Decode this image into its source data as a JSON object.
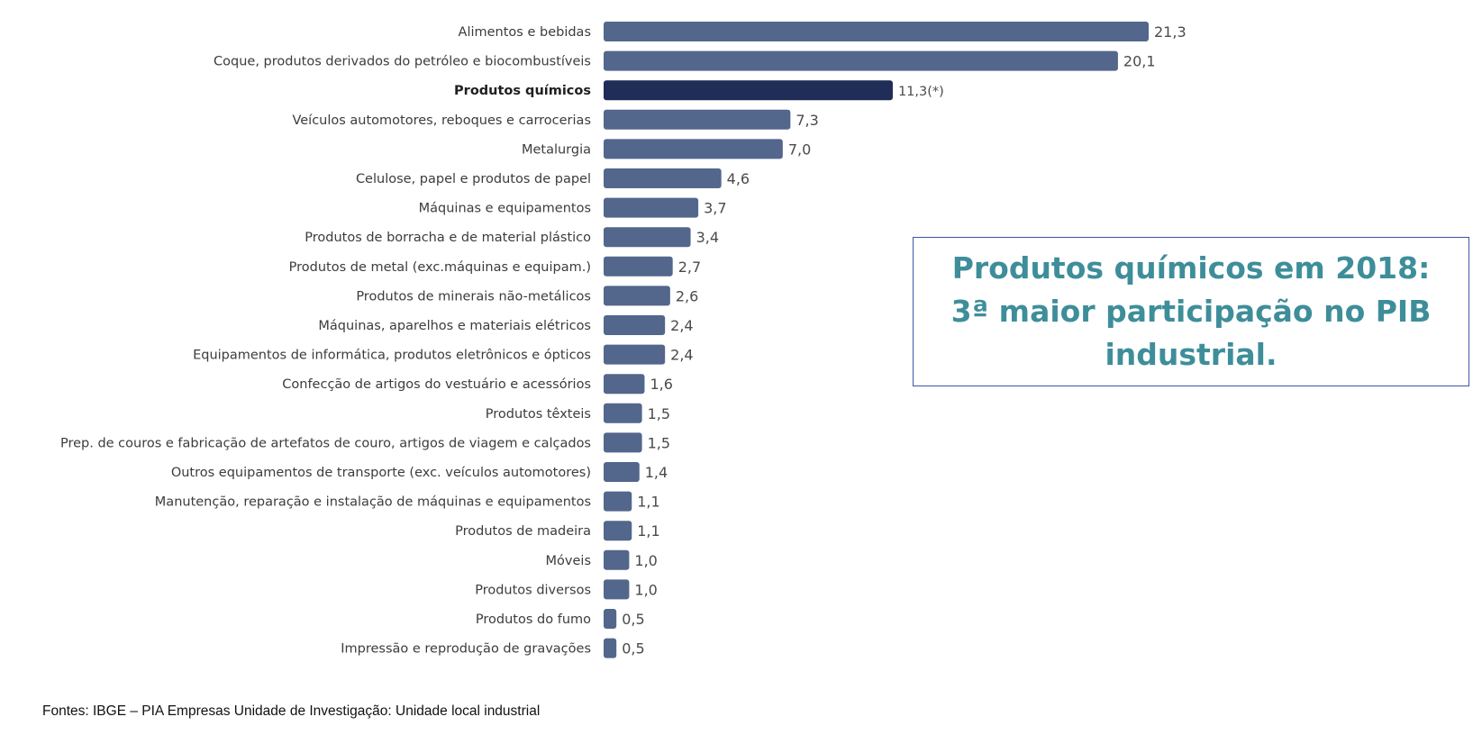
{
  "chart_data": {
    "type": "bar",
    "orientation": "horizontal",
    "categories": [
      "Alimentos e bebidas",
      "Coque, produtos derivados do petróleo e biocombustíveis",
      "Produtos químicos",
      "Veículos automotores, reboques e carrocerias",
      "Metalurgia",
      "Celulose, papel e produtos de papel",
      "Máquinas e equipamentos",
      "Produtos de borracha e de material plástico",
      "Produtos de metal (exc.máquinas e equipam.)",
      "Produtos de minerais não-metálicos",
      "Máquinas, aparelhos e materiais elétricos",
      "Equipamentos de informática, produtos eletrônicos e ópticos",
      "Confecção de artigos do vestuário e acessórios",
      "Produtos têxteis",
      "Prep. de couros e fabricação de artefatos de couro, artigos de viagem e calçados",
      "Outros equipamentos de transporte (exc. veículos automotores)",
      "Manutenção, reparação e instalação de máquinas e equipamentos",
      "Produtos de madeira",
      "Móveis",
      "Produtos diversos",
      "Produtos do fumo",
      "Impressão e reprodução de gravações"
    ],
    "values": [
      21.3,
      20.1,
      11.3,
      7.3,
      7.0,
      4.6,
      3.7,
      3.4,
      2.7,
      2.6,
      2.4,
      2.4,
      1.6,
      1.5,
      1.5,
      1.4,
      1.1,
      1.1,
      1.0,
      1.0,
      0.5,
      0.5
    ],
    "value_labels": [
      "21,3",
      "20,1",
      "11,3(*)",
      "7,3",
      "7,0",
      "4,6",
      "3,7",
      "3,4",
      "2,7",
      "2,6",
      "2,4",
      "2,4",
      "1,6",
      "1,5",
      "1,5",
      "1,4",
      "1,1",
      "1,1",
      "1,0",
      "1,0",
      "0,5",
      "0,5"
    ],
    "highlight_index": 2,
    "xlim": [
      0,
      21.3
    ],
    "grid": false,
    "legend": "none",
    "colors": {
      "bar": "#53668c",
      "highlight": "#1f2d57"
    }
  },
  "callout": {
    "lines": [
      "Produtos químicos em 2018:",
      "3ª maior participação no PIB",
      "industrial."
    ],
    "text_color": "#3e8e9a",
    "border_color": "#3d55a5"
  },
  "source_note": "Fontes: IBGE – PIA Empresas Unidade de Investigação: Unidade local industrial"
}
